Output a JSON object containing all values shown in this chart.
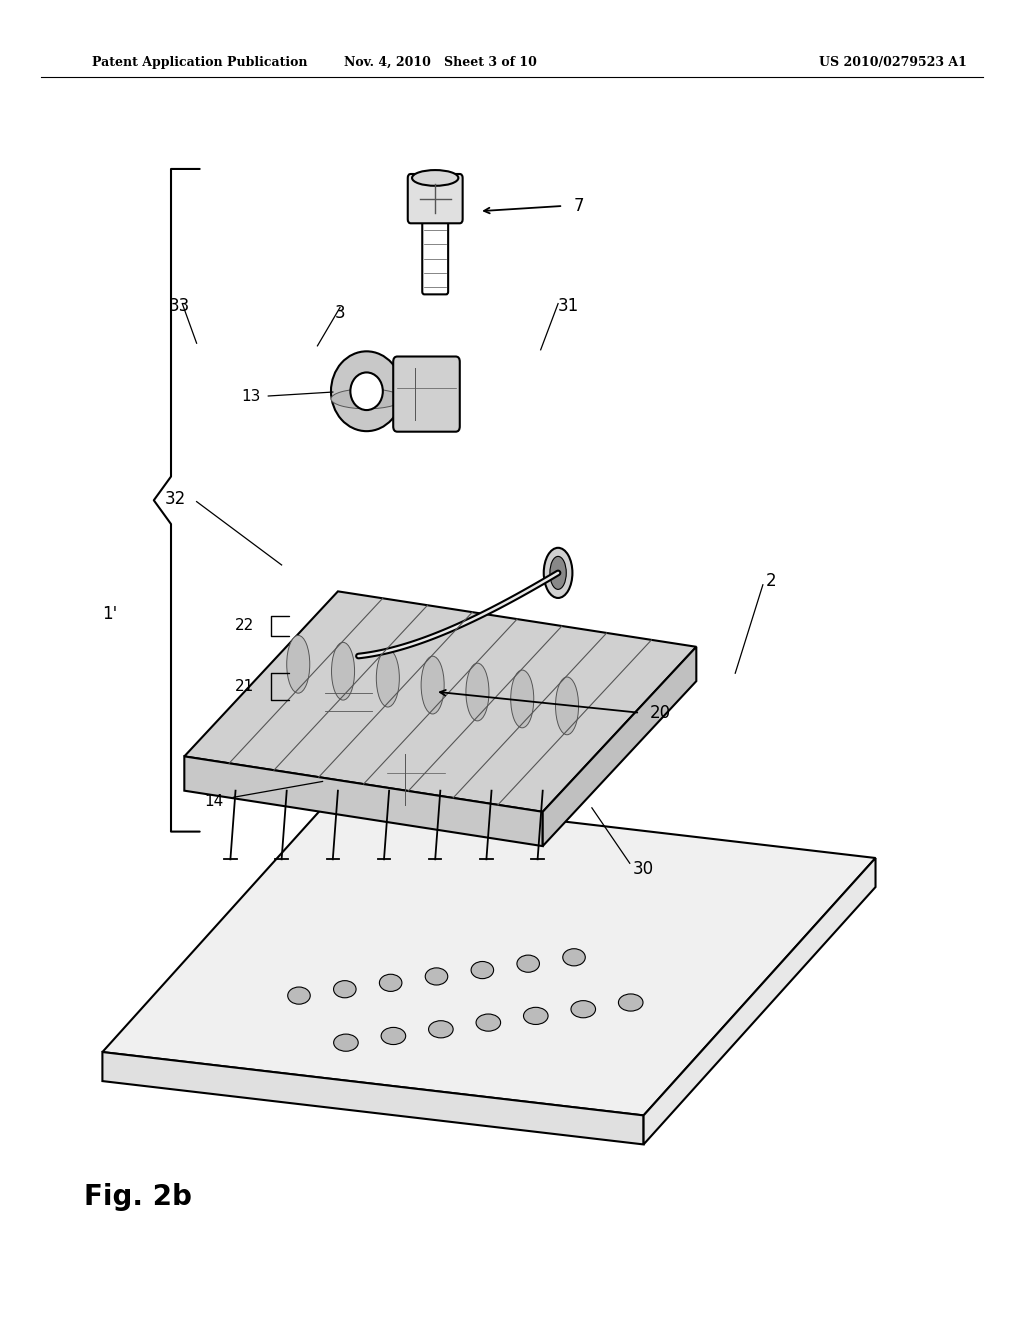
{
  "background_color": "#ffffff",
  "header_left": "Patent Application Publication",
  "header_mid": "Nov. 4, 2010   Sheet 3 of 10",
  "header_right": "US 2010/0279523 A1",
  "figure_label": "Fig. 2b",
  "black": "#000000",
  "gray": "#555555",
  "light_gray": "#aaaaaa",
  "dark_gray": "#888888",
  "mid_gray": "#cccccc",
  "component_gray": "#d8d8d8"
}
